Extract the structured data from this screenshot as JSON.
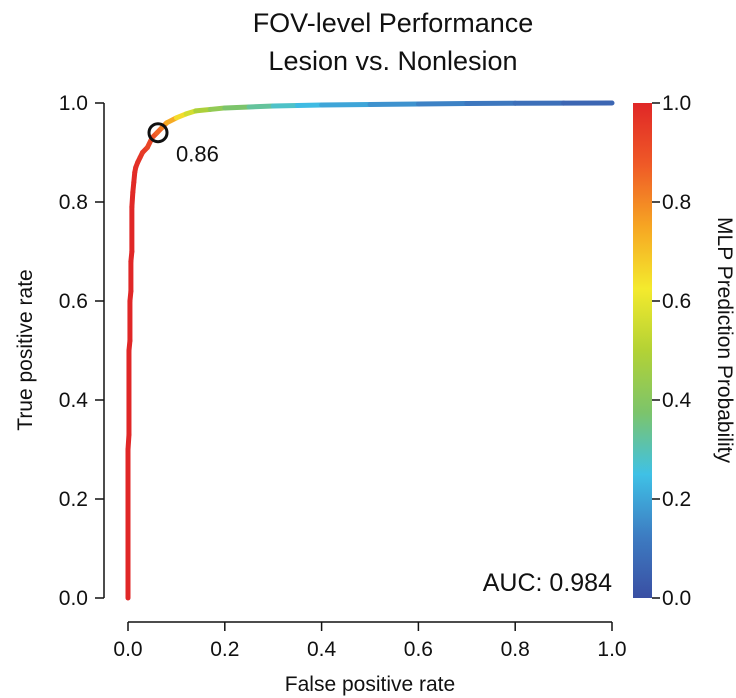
{
  "chart_data": {
    "type": "line",
    "title": "FOV-level Performance",
    "subtitle": "Lesion vs. Nonlesion",
    "xlabel": "False positive rate",
    "ylabel": "True positive rate",
    "xlim": [
      0,
      1
    ],
    "ylim": [
      0,
      1
    ],
    "xticks": [
      "0.0",
      "0.2",
      "0.4",
      "0.6",
      "0.8",
      "1.0"
    ],
    "yticks": [
      "0.0",
      "0.2",
      "0.4",
      "0.6",
      "0.8",
      "1.0"
    ],
    "grid": false,
    "series": [
      {
        "x": [
          0.0,
          0.0,
          0.002,
          0.002,
          0.004,
          0.004,
          0.006,
          0.006,
          0.008,
          0.008,
          0.01,
          0.012,
          0.014,
          0.016,
          0.02,
          0.025,
          0.03,
          0.04,
          0.05,
          0.06,
          0.07,
          0.08,
          0.1,
          0.12,
          0.14,
          0.17,
          0.2,
          0.25,
          0.3,
          0.35,
          0.4,
          0.5,
          0.6,
          0.7,
          0.8,
          0.9,
          1.0
        ],
        "y": [
          0.0,
          0.3,
          0.33,
          0.5,
          0.52,
          0.6,
          0.62,
          0.68,
          0.7,
          0.79,
          0.82,
          0.84,
          0.86,
          0.87,
          0.88,
          0.89,
          0.9,
          0.91,
          0.93,
          0.94,
          0.95,
          0.96,
          0.97,
          0.978,
          0.984,
          0.987,
          0.99,
          0.992,
          0.994,
          0.995,
          0.996,
          0.997,
          0.998,
          0.999,
          0.9995,
          0.9998,
          1.0
        ],
        "probability": [
          1.0,
          1.0,
          1.0,
          1.0,
          1.0,
          1.0,
          1.0,
          1.0,
          1.0,
          1.0,
          0.99,
          0.99,
          0.99,
          0.98,
          0.98,
          0.97,
          0.96,
          0.94,
          0.91,
          0.87,
          0.84,
          0.78,
          0.7,
          0.6,
          0.52,
          0.45,
          0.4,
          0.35,
          0.3,
          0.26,
          0.22,
          0.18,
          0.15,
          0.12,
          0.1,
          0.08,
          0.05
        ]
      }
    ],
    "annotations": [
      {
        "text": "0.86",
        "x": 0.062,
        "y": 0.94
      },
      {
        "text": "AUC: 0.984",
        "position": "bottom-right"
      }
    ],
    "colorbar": {
      "label": "MLP Prediction Probability",
      "range": [
        0,
        1
      ],
      "ticks": [
        "0.0",
        "0.2",
        "0.4",
        "0.6",
        "0.8",
        "1.0"
      ],
      "colors": [
        "#3a4fa3",
        "#3d7cc2",
        "#3fc1e6",
        "#7cc46b",
        "#b3d235",
        "#f4ea2d",
        "#f6a623",
        "#ef5a27",
        "#e02727"
      ]
    }
  }
}
